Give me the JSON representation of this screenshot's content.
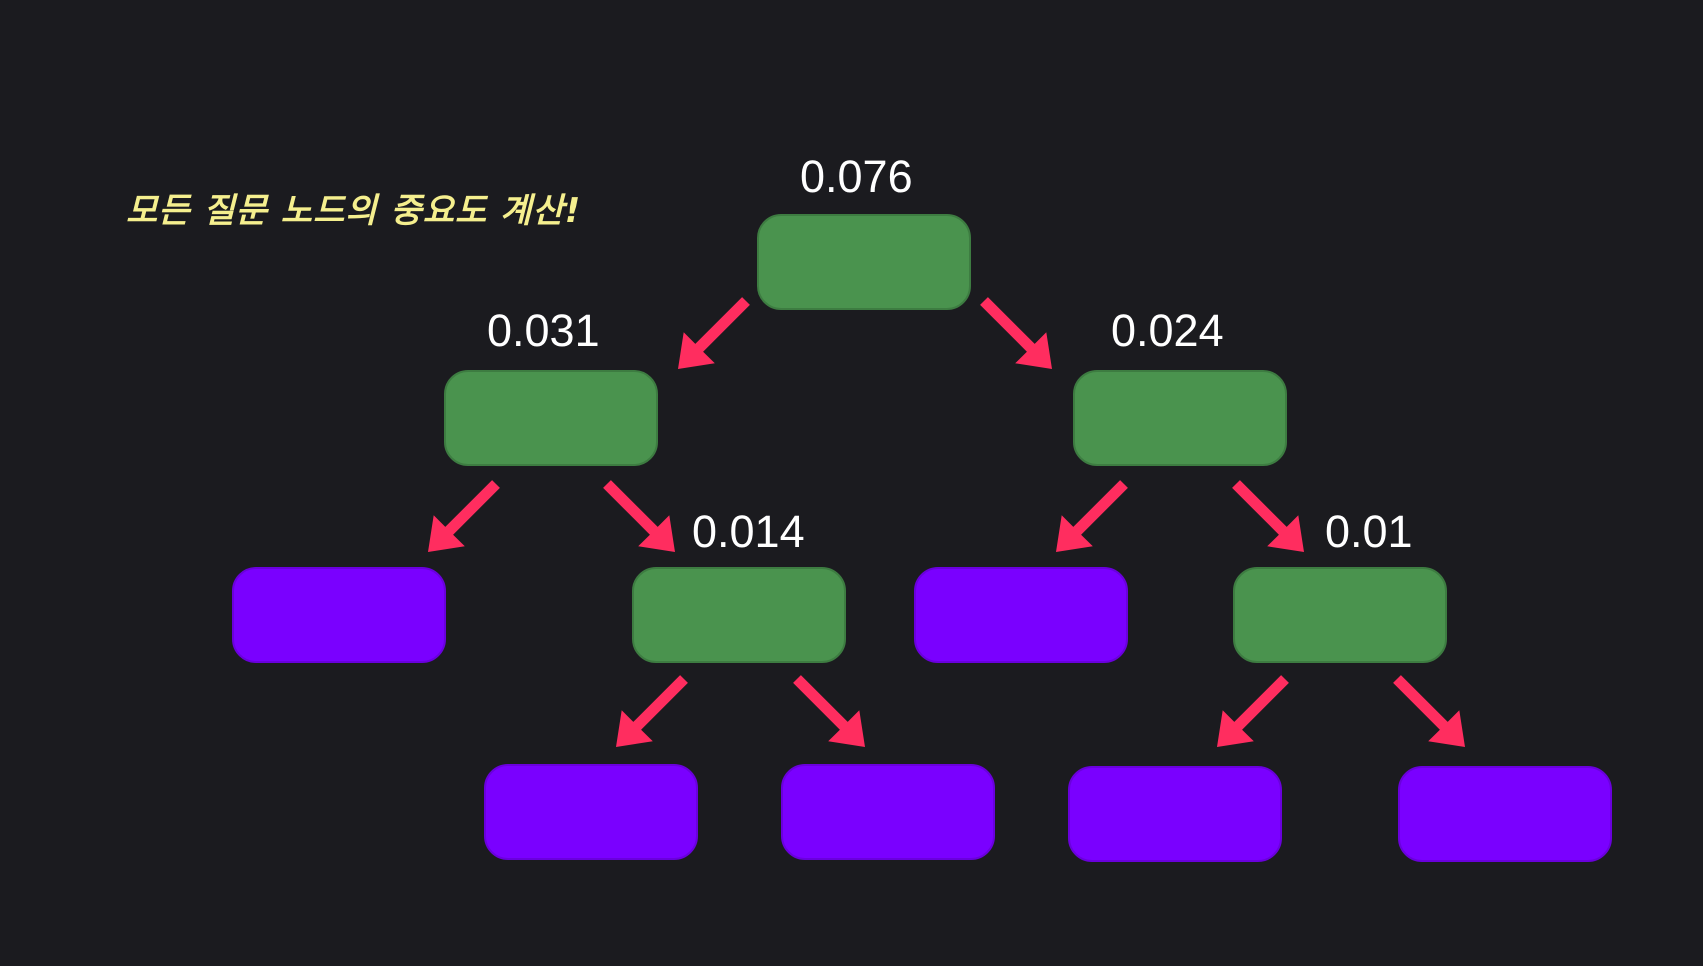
{
  "caption": "모든 질문 노드의 중요도 계산!",
  "colors": {
    "background": "#1b1b1f",
    "question_node": "#4a934e",
    "leaf_node": "#7a00ff",
    "arrow": "#ff2d5f",
    "caption": "#f5ef8e",
    "label": "#ffffff"
  },
  "nodes": [
    {
      "id": "root",
      "kind": "question",
      "importance": "0.076"
    },
    {
      "id": "left",
      "kind": "question",
      "importance": "0.031"
    },
    {
      "id": "right",
      "kind": "question",
      "importance": "0.024"
    },
    {
      "id": "left-leaf",
      "kind": "leaf"
    },
    {
      "id": "left-right",
      "kind": "question",
      "importance": "0.014"
    },
    {
      "id": "right-leaf",
      "kind": "leaf"
    },
    {
      "id": "right-right",
      "kind": "question",
      "importance": "0.01"
    },
    {
      "id": "lr-leaf-1",
      "kind": "leaf"
    },
    {
      "id": "lr-leaf-2",
      "kind": "leaf"
    },
    {
      "id": "rr-leaf-1",
      "kind": "leaf"
    },
    {
      "id": "rr-leaf-2",
      "kind": "leaf"
    }
  ],
  "edges": [
    [
      "root",
      "left"
    ],
    [
      "root",
      "right"
    ],
    [
      "left",
      "left-leaf"
    ],
    [
      "left",
      "left-right"
    ],
    [
      "right",
      "right-leaf"
    ],
    [
      "right",
      "right-right"
    ],
    [
      "left-right",
      "lr-leaf-1"
    ],
    [
      "left-right",
      "lr-leaf-2"
    ],
    [
      "right-right",
      "rr-leaf-1"
    ],
    [
      "right-right",
      "rr-leaf-2"
    ]
  ]
}
